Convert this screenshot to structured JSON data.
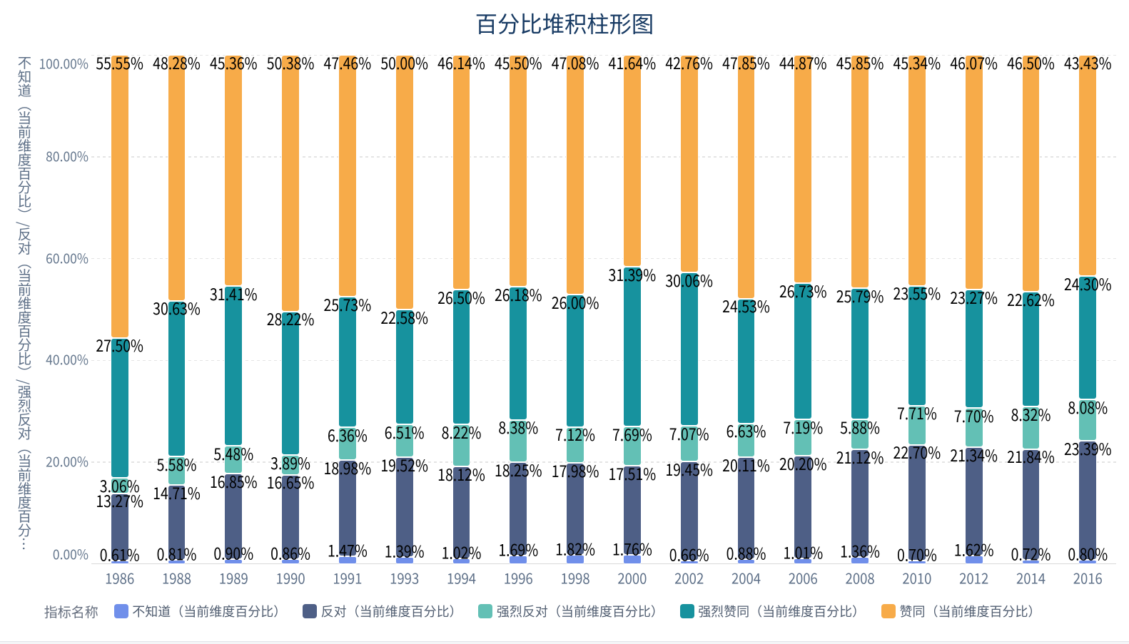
{
  "title": "百分比堆积柱形图",
  "y_axis": {
    "name": "不知道（当前维度百分比）/反对（当前维度百分比）/强烈反对（当前维度百分比）/强烈赞同（当前维度百分比）/赞同（当前维度百分比）",
    "tick_labels": [
      "0.00%",
      "20.00%",
      "40.00%",
      "60.00%",
      "80.00%",
      "100.00%"
    ]
  },
  "legend": {
    "title": "指标名称",
    "items": [
      {
        "label": "不知道（当前维度百分比）",
        "color": "#708fea"
      },
      {
        "label": "反对（当前维度百分比）",
        "color": "#4e5f86"
      },
      {
        "label": "强烈反对（当前维度百分比）",
        "color": "#63c0b5"
      },
      {
        "label": "强烈赞同（当前维度百分比）",
        "color": "#17929e"
      },
      {
        "label": "赞同（当前维度百分比）",
        "color": "#f7ab49"
      }
    ]
  },
  "colors": {
    "title_text": "#173a63",
    "ytick_text": "#66788e",
    "xtick_text": "#5d6f87",
    "y_axis_title_text": "#5d6f87",
    "legend_title_text": "#666f7f",
    "legend_label_text": "#505d70",
    "gridline": "#e4e4e4",
    "axis_line": "#d9d9d9",
    "data_label_text": "#000000"
  },
  "chart_data": {
    "type": "bar",
    "stacked": true,
    "percentage": true,
    "title": "百分比堆积柱形图",
    "xlabel": "",
    "ylabel": "不知道（当前维度百分比）/反对（当前维度百分比）/强烈反对（当前维度百分比）…",
    "ylim": [
      0,
      100
    ],
    "y_ticks": [
      0,
      20,
      40,
      60,
      80,
      100
    ],
    "grid": true,
    "legend_position": "bottom",
    "categories": [
      "1986",
      "1988",
      "1989",
      "1990",
      "1991",
      "1993",
      "1994",
      "1996",
      "1998",
      "2000",
      "2002",
      "2004",
      "2006",
      "2008",
      "2010",
      "2012",
      "2014",
      "2016"
    ],
    "series": [
      {
        "name": "不知道（当前维度百分比）",
        "color": "#708fea",
        "values": [
          0.61,
          0.81,
          0.9,
          0.86,
          1.47,
          1.39,
          1.02,
          1.69,
          1.82,
          1.76,
          0.66,
          0.88,
          1.01,
          1.36,
          0.7,
          1.62,
          0.72,
          0.8
        ]
      },
      {
        "name": "反对（当前维度百分比）",
        "color": "#4e5f86",
        "values": [
          13.27,
          14.71,
          16.85,
          16.65,
          18.98,
          19.52,
          18.12,
          18.25,
          17.98,
          17.51,
          19.45,
          20.11,
          20.2,
          21.12,
          22.7,
          21.34,
          21.84,
          23.39
        ]
      },
      {
        "name": "强烈反对（当前维度百分比）",
        "color": "#63c0b5",
        "values": [
          3.06,
          5.58,
          5.48,
          3.89,
          6.36,
          6.51,
          8.22,
          8.38,
          7.12,
          7.69,
          7.07,
          6.63,
          7.19,
          5.88,
          7.71,
          7.7,
          8.32,
          8.08
        ]
      },
      {
        "name": "强烈赞同（当前维度百分比）",
        "color": "#17929e",
        "values": [
          27.5,
          30.63,
          31.41,
          28.22,
          25.73,
          22.58,
          26.5,
          26.18,
          26.0,
          31.39,
          30.06,
          24.53,
          26.73,
          25.79,
          23.55,
          23.27,
          22.62,
          24.3
        ]
      },
      {
        "name": "赞同（当前维度百分比）",
        "color": "#f7ab49",
        "values": [
          55.55,
          48.28,
          45.36,
          50.38,
          47.46,
          50.0,
          46.14,
          45.5,
          47.08,
          41.64,
          42.76,
          47.85,
          44.87,
          45.85,
          45.34,
          46.07,
          46.5,
          43.43
        ]
      }
    ]
  }
}
